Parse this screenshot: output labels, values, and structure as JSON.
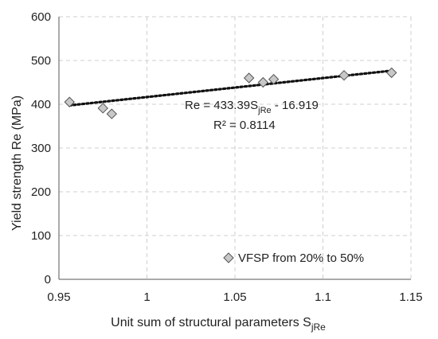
{
  "chart_data": {
    "type": "scatter",
    "xlabel": "Unit sum of structural parameters S",
    "xlabel_sub": "jRe",
    "ylabel": "Yield strength Re  (MPa)",
    "xlim": [
      0.95,
      1.15
    ],
    "ylim": [
      0,
      600
    ],
    "x_ticks": [
      "0.95",
      "1",
      "1.05",
      "1.1",
      "1.15"
    ],
    "y_ticks": [
      "0",
      "100",
      "200",
      "300",
      "400",
      "500",
      "600"
    ],
    "grid": true,
    "marker": "diamond",
    "marker_color": "#c8c8c8",
    "trendline_color": "#111111",
    "legend_position": "bottom-right",
    "series": [
      {
        "name": "VFSP from 20% to 50%",
        "x": [
          0.956,
          0.975,
          0.98,
          1.058,
          1.066,
          1.072,
          1.112,
          1.139
        ],
        "y": [
          405,
          391,
          378,
          460,
          450,
          457,
          466,
          472
        ]
      }
    ],
    "trendline": {
      "slope": 433.39,
      "intercept": -16.919,
      "x_range": [
        0.956,
        1.139
      ]
    },
    "equation_parts": {
      "prefix": "Re = 433.39S",
      "sub": "jRe",
      "suffix": " - 16.919"
    },
    "r2_text": "R² = 0.8114"
  }
}
